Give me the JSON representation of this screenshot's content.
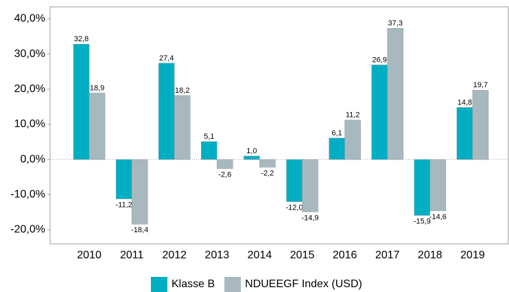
{
  "chart_data": {
    "type": "bar",
    "categories": [
      "2010",
      "2011",
      "2012",
      "2013",
      "2014",
      "2015",
      "2016",
      "2017",
      "2018",
      "2019"
    ],
    "series": [
      {
        "name": "Klasse B",
        "color": "#00aec4",
        "values": [
          32.8,
          -11.2,
          27.4,
          5.1,
          1.0,
          -12.0,
          6.1,
          26.9,
          -15.9,
          14.8
        ],
        "value_labels": [
          "32,8",
          "-11,2",
          "27,4",
          "5,1",
          "1,0",
          "-12,0",
          "6,1",
          "26,9",
          "-15,9",
          "14,8"
        ]
      },
      {
        "name": "NDUEEGF Index (USD)",
        "color": "#a7b9bf",
        "values": [
          18.9,
          -18.4,
          18.2,
          -2.6,
          -2.2,
          -14.9,
          11.2,
          37.3,
          -14.6,
          19.7
        ],
        "value_labels": [
          "18,9",
          "-18,4",
          "18,2",
          "-2,6",
          "-2,2",
          "-14,9",
          "11,2",
          "37,3",
          "-14,6",
          "19,7"
        ]
      }
    ],
    "ylim": [
      -24,
      43.4
    ],
    "yticks": [
      {
        "value": -20,
        "label": "-20,0%"
      },
      {
        "value": -10,
        "label": "-10,0%"
      },
      {
        "value": 0,
        "label": "0,0%"
      },
      {
        "value": 10,
        "label": "10,0%"
      },
      {
        "value": 20,
        "label": "20,0%"
      },
      {
        "value": 30,
        "label": "30,0%"
      },
      {
        "value": 40,
        "label": "40,0%"
      }
    ],
    "legend": "bottom"
  }
}
